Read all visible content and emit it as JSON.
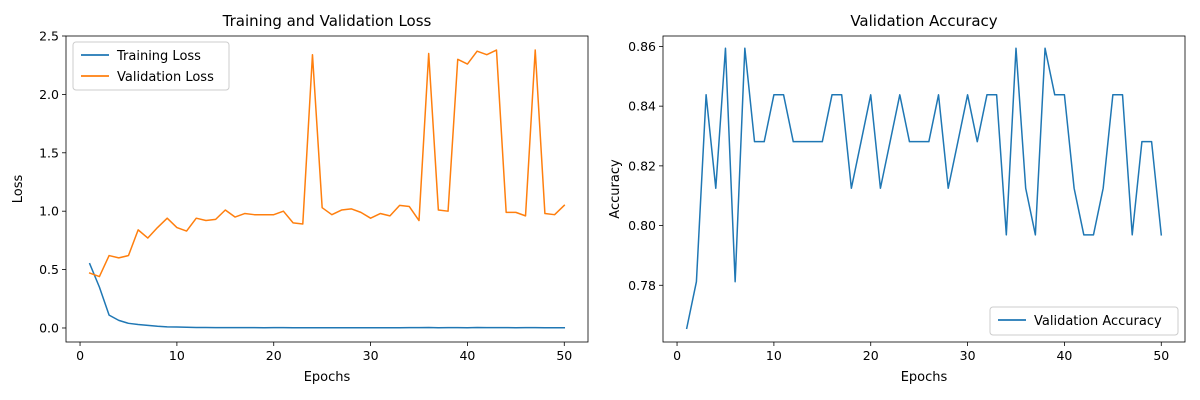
{
  "chart_data": [
    {
      "type": "line",
      "title": "Training and Validation Loss",
      "xlabel": "Epochs",
      "ylabel": "Loss",
      "xlim": [
        -1.45,
        52.45
      ],
      "ylim": [
        -0.12,
        2.5
      ],
      "xticks": [
        0,
        10,
        20,
        30,
        40,
        50
      ],
      "yticks": [
        0.0,
        0.5,
        1.0,
        1.5,
        2.0,
        2.5
      ],
      "ytick_labels": [
        "0.0",
        "0.5",
        "1.0",
        "1.5",
        "2.0",
        "2.5"
      ],
      "legend_position": "upper-left",
      "x": [
        1,
        2,
        3,
        4,
        5,
        6,
        7,
        8,
        9,
        10,
        11,
        12,
        13,
        14,
        15,
        16,
        17,
        18,
        19,
        20,
        21,
        22,
        23,
        24,
        25,
        26,
        27,
        28,
        29,
        30,
        31,
        32,
        33,
        34,
        35,
        36,
        37,
        38,
        39,
        40,
        41,
        42,
        43,
        44,
        45,
        46,
        47,
        48,
        49,
        50
      ],
      "series": [
        {
          "name": "Training Loss",
          "color": "#1f77b4",
          "values": [
            0.55,
            0.35,
            0.11,
            0.065,
            0.04,
            0.03,
            0.022,
            0.015,
            0.01,
            0.008,
            0.006,
            0.004,
            0.004,
            0.003,
            0.003,
            0.003,
            0.003,
            0.003,
            0.002,
            0.003,
            0.003,
            0.002,
            0.002,
            0.002,
            0.002,
            0.002,
            0.002,
            0.002,
            0.002,
            0.002,
            0.002,
            0.002,
            0.002,
            0.003,
            0.003,
            0.004,
            0.002,
            0.003,
            0.003,
            0.002,
            0.004,
            0.003,
            0.003,
            0.003,
            0.002,
            0.003,
            0.003,
            0.002,
            0.002,
            0.002
          ]
        },
        {
          "name": "Validation Loss",
          "color": "#ff7f0e",
          "values": [
            0.47,
            0.44,
            0.62,
            0.6,
            0.62,
            0.84,
            0.77,
            0.86,
            0.94,
            0.86,
            0.83,
            0.94,
            0.92,
            0.93,
            1.01,
            0.95,
            0.98,
            0.97,
            0.97,
            0.97,
            1.0,
            0.9,
            0.89,
            2.34,
            1.03,
            0.97,
            1.01,
            1.02,
            0.99,
            0.94,
            0.98,
            0.96,
            1.05,
            1.04,
            0.92,
            2.35,
            1.01,
            1.0,
            2.3,
            2.26,
            2.37,
            2.34,
            2.38,
            0.99,
            0.99,
            0.96,
            2.38,
            0.98,
            0.97,
            1.05
          ]
        }
      ]
    },
    {
      "type": "line",
      "title": "Validation Accuracy",
      "xlabel": "Epochs",
      "ylabel": "Accuracy",
      "xlim": [
        -1.45,
        52.45
      ],
      "ylim": [
        0.761,
        0.8635
      ],
      "xticks": [
        0,
        10,
        20,
        30,
        40,
        50
      ],
      "yticks": [
        0.78,
        0.8,
        0.82,
        0.84,
        0.86
      ],
      "ytick_labels": [
        "0.78",
        "0.80",
        "0.82",
        "0.84",
        "0.86"
      ],
      "legend_position": "lower-right",
      "x": [
        1,
        2,
        3,
        4,
        5,
        6,
        7,
        8,
        9,
        10,
        11,
        12,
        13,
        14,
        15,
        16,
        17,
        18,
        19,
        20,
        21,
        22,
        23,
        24,
        25,
        26,
        27,
        28,
        29,
        30,
        31,
        32,
        33,
        34,
        35,
        36,
        37,
        38,
        39,
        40,
        41,
        42,
        43,
        44,
        45,
        46,
        47,
        48,
        49,
        50
      ],
      "series": [
        {
          "name": "Validation Accuracy",
          "color": "#1f77b4",
          "values": [
            0.7656,
            0.7812,
            0.8438,
            0.8125,
            0.8594,
            0.7812,
            0.8594,
            0.8281,
            0.8281,
            0.8438,
            0.8438,
            0.8281,
            0.8281,
            0.8281,
            0.8281,
            0.8438,
            0.8438,
            0.8125,
            0.8281,
            0.8438,
            0.8125,
            0.8281,
            0.8438,
            0.8281,
            0.8281,
            0.8281,
            0.8438,
            0.8125,
            0.8281,
            0.8438,
            0.8281,
            0.8438,
            0.8438,
            0.7969,
            0.8594,
            0.8125,
            0.7969,
            0.8594,
            0.8438,
            0.8438,
            0.8125,
            0.7969,
            0.7969,
            0.8125,
            0.8438,
            0.8438,
            0.7969,
            0.8281,
            0.8281,
            0.7969
          ]
        }
      ]
    }
  ]
}
